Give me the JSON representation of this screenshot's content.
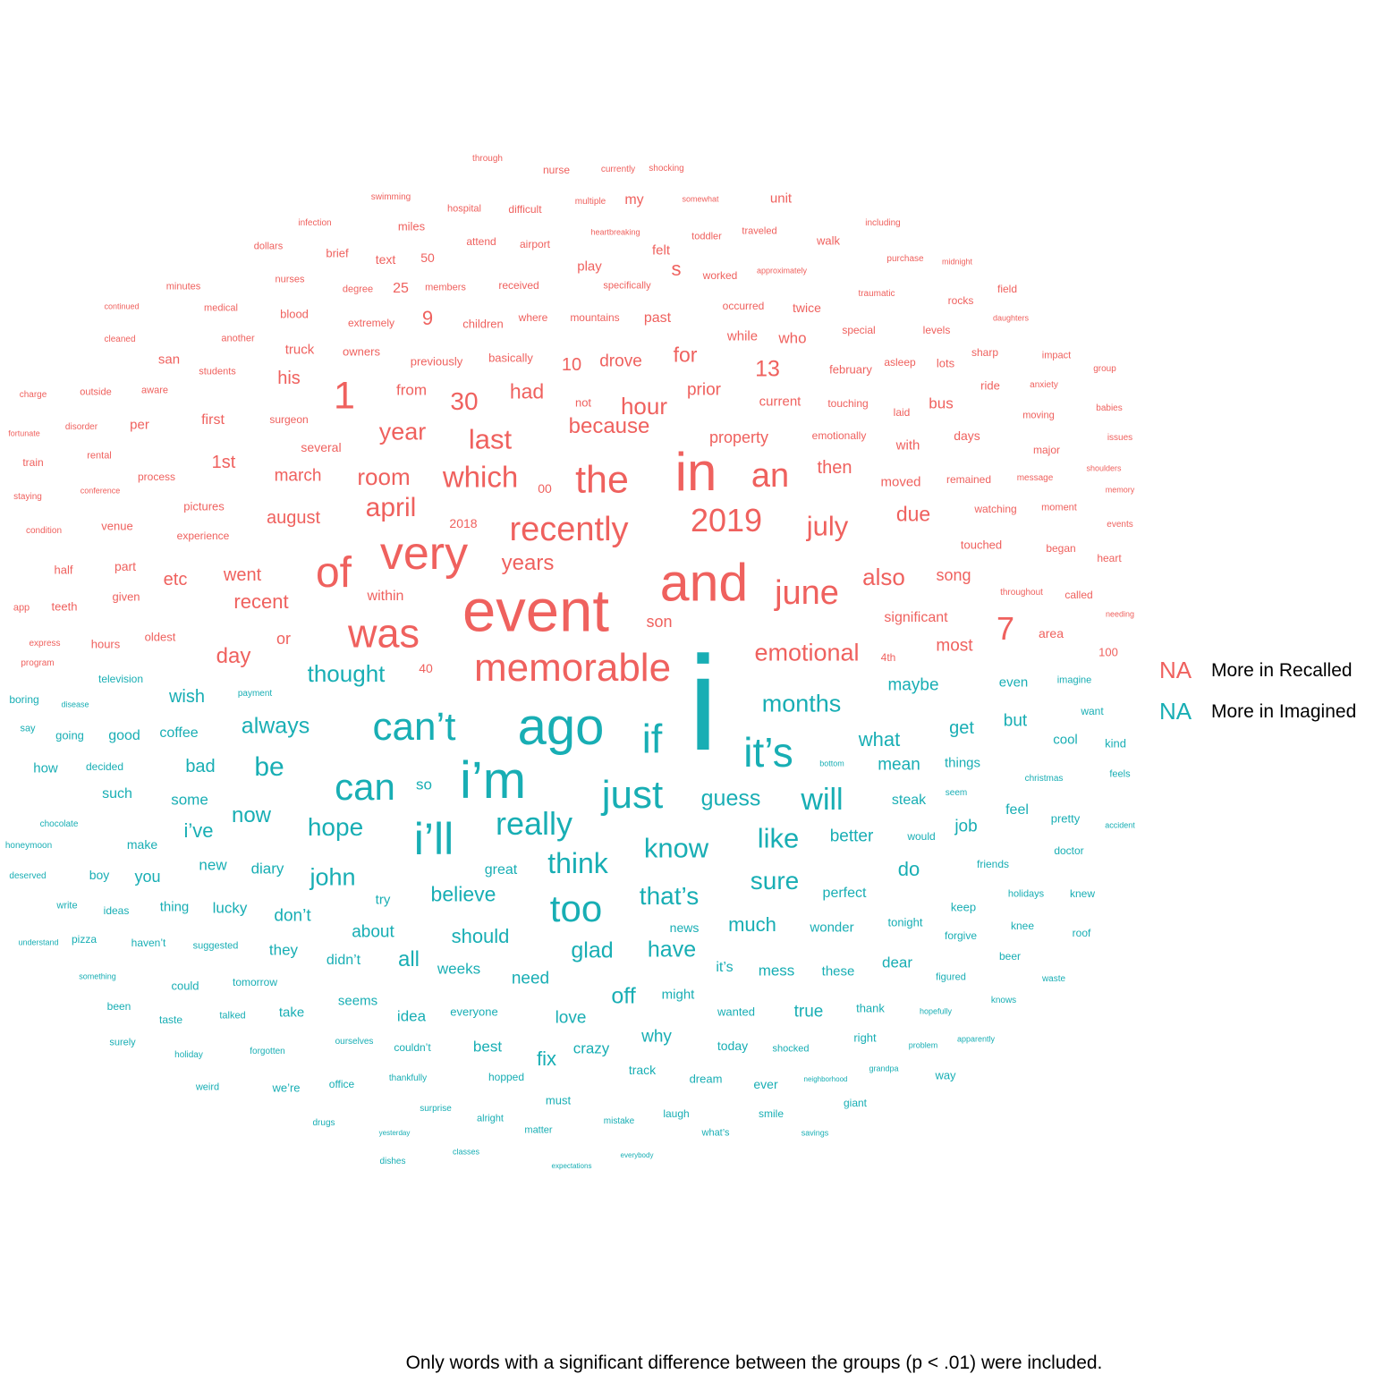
{
  "colors": {
    "recalled": "#ef615e",
    "imagined": "#18aeb4"
  },
  "legend": [
    {
      "key": "NA",
      "label": "More in Recalled",
      "group": "recalled"
    },
    {
      "key": "NA",
      "label": "More in Imagined",
      "group": "imagined"
    }
  ],
  "caption": "Only words with a significant difference between the groups (p < .01) were included.",
  "words": {
    "recalled": [
      "through",
      "nurse",
      "currently",
      "shocking",
      "swimming",
      "hospital",
      "difficult",
      "multiple",
      "my",
      "somewhat",
      "unit",
      "infection",
      "miles",
      "heartbreaking",
      "toddler",
      "traveled",
      "including",
      "dollars",
      "brief",
      "text",
      "50",
      "attend",
      "airport",
      "felt",
      "walk",
      "play",
      "s",
      "purchase",
      "midnight",
      "worked",
      "approximately",
      "minutes",
      "nurses",
      "degree",
      "25",
      "members",
      "received",
      "specifically",
      "traumatic",
      "rocks",
      "field",
      "continued",
      "medical",
      "blood",
      "9",
      "extremely",
      "children",
      "where",
      "mountains",
      "past",
      "occurred",
      "twice",
      "special",
      "levels",
      "daughters",
      "cleaned",
      "another",
      "truck",
      "owners",
      "previously",
      "basically",
      "while",
      "who",
      "san",
      "10",
      "drove",
      "for",
      "sharp",
      "impact",
      "students",
      "aware",
      "his",
      "1",
      "13",
      "february",
      "asleep",
      "lots",
      "group",
      "charge",
      "outside",
      "from",
      "30",
      "had",
      "hour",
      "prior",
      "not",
      "current",
      "touching",
      "laid",
      "bus",
      "ride",
      "anxiety",
      "disorder",
      "per",
      "first",
      "surgeon",
      "because",
      "year",
      "last",
      "moving",
      "babies",
      "fortunate",
      "several",
      "property",
      "emotionally",
      "with",
      "days",
      "issues",
      "major",
      "train",
      "rental",
      "1st",
      "march",
      "room",
      "which",
      "the",
      "in",
      "an",
      "then",
      "moved",
      "remained",
      "message",
      "shoulders",
      "process",
      "conference",
      "00",
      "recently",
      "2019",
      "july",
      "due",
      "memory",
      "watching",
      "moment",
      "staying",
      "pictures",
      "april",
      "2018",
      "august",
      "events",
      "condition",
      "venue",
      "experience",
      "very",
      "years",
      "touched",
      "began",
      "half",
      "part",
      "of",
      "etc",
      "went",
      "and",
      "june",
      "also",
      "song",
      "heart",
      "app",
      "teeth",
      "given",
      "within",
      "son",
      "event",
      "throughout",
      "called",
      "recent",
      "significant",
      "needing",
      "oldest",
      "express",
      "hours",
      "or",
      "7",
      "area",
      "most",
      "was",
      "day",
      "emotional",
      "4th",
      "100",
      "program",
      "memorable",
      "40"
    ],
    "imagined": [
      "television",
      "payment",
      "boring",
      "disease",
      "wish",
      "thought",
      "maybe",
      "even",
      "imagine",
      "say",
      "going",
      "good",
      "coffee",
      "always",
      "months",
      "i",
      "ago",
      "can’t",
      "get",
      "want",
      "if",
      "but",
      "what",
      "kind",
      "how",
      "decided",
      "bad",
      "be",
      "it’s",
      "cool",
      "mean",
      "things",
      "bottom",
      "so",
      "such",
      "some",
      "can",
      "i’m",
      "just",
      "guess",
      "will",
      "christmas",
      "feels",
      "chocolate",
      "steak",
      "seem",
      "now",
      "i’ve",
      "hope",
      "really",
      "like",
      "pretty",
      "feel",
      "i’ll",
      "job",
      "better",
      "would",
      "accident",
      "honeymoon",
      "make",
      "know",
      "doctor",
      "new",
      "diary",
      "think",
      "do",
      "friends",
      "boy",
      "you",
      "john",
      "great",
      "sure",
      "deserved",
      "believe",
      "that’s",
      "holidays",
      "knew",
      "try",
      "too",
      "perfect",
      "write",
      "ideas",
      "thing",
      "lucky",
      "don’t",
      "keep",
      "much",
      "tonight",
      "knee",
      "news",
      "wonder",
      "roof",
      "forgive",
      "understand",
      "pizza",
      "haven’t",
      "about",
      "should",
      "suggested",
      "they",
      "glad",
      "have",
      "beer",
      "didn’t",
      "all",
      "weeks",
      "dear",
      "it’s",
      "mess",
      "these",
      "figured",
      "need",
      "something",
      "could",
      "tomorrow",
      "waste",
      "off",
      "knows",
      "been",
      "seems",
      "might",
      "take",
      "true",
      "thank",
      "wanted",
      "hopefully",
      "taste",
      "talked",
      "idea",
      "everyone",
      "love",
      "couldn’t",
      "why",
      "right",
      "surely",
      "best",
      "crazy",
      "today",
      "shocked",
      "apparently",
      "problem",
      "ourselves",
      "holiday",
      "forgotten",
      "fix",
      "track",
      "grandpa",
      "way",
      "thankfully",
      "hopped",
      "weird",
      "we’re",
      "office",
      "dream",
      "ever",
      "neighborhood",
      "must",
      "giant",
      "surprise",
      "laugh",
      "alright",
      "smile",
      "mistake",
      "drugs",
      "matter",
      "what’s",
      "yesterday",
      "savings",
      "classes",
      "everybody",
      "dishes",
      "expectations"
    ]
  }
}
